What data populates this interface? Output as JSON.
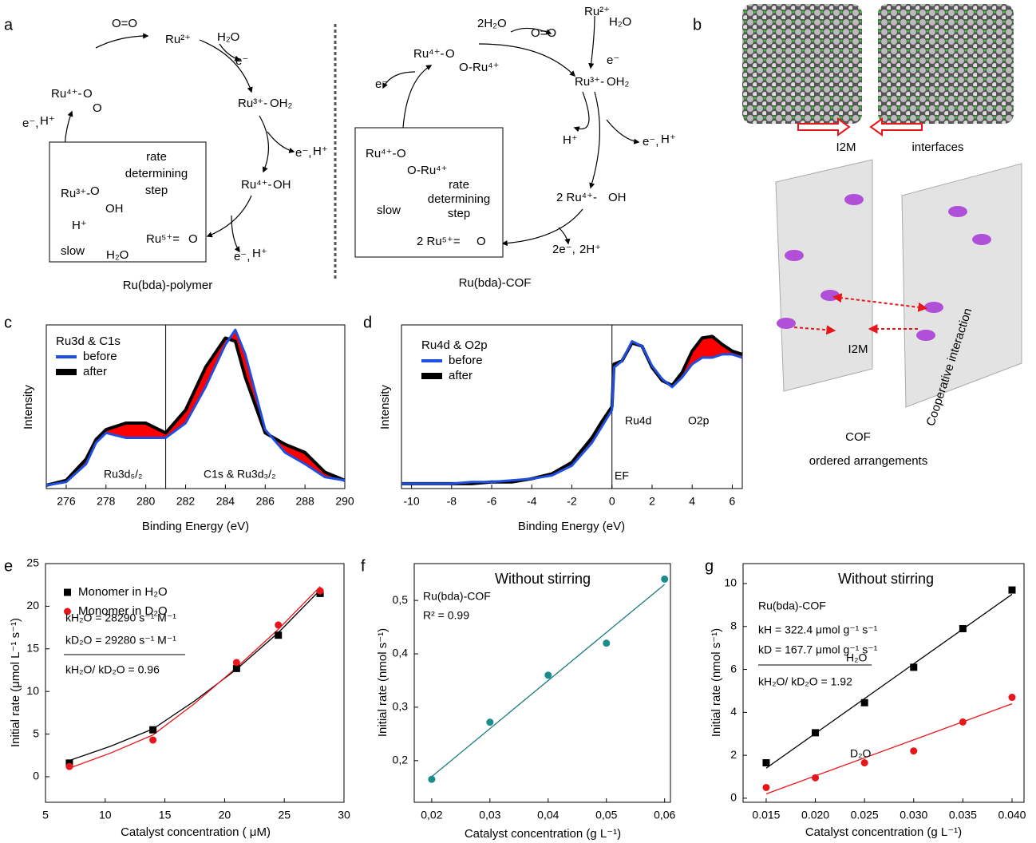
{
  "panel_a": {
    "label": "a",
    "texts": [
      "O=O",
      "Ru²⁺",
      "H₂O",
      "e⁻",
      "Ru³⁺-",
      "OH₂",
      "e⁻,",
      "H⁺",
      "Ru⁴⁺-",
      "OH",
      "Ru⁵⁺=",
      "O",
      "e⁻,",
      "H⁺",
      "Ru⁴⁺-",
      "O",
      "O",
      "e⁻,",
      "H⁺",
      "rate",
      "determining",
      "step",
      "Ru³⁺-",
      "O",
      "OH",
      "H⁺",
      "slow",
      "H₂O",
      "Ru(bda)-polymer",
      "2H₂O",
      "O=O",
      "Ru²⁺",
      "H₂O",
      "e⁻",
      "Ru³⁺-",
      "OH₂",
      "Ru⁴⁺-",
      "O",
      "O",
      "-Ru⁴⁺",
      "e⁻",
      "H⁺",
      "e⁻,",
      "H⁺",
      "2 Ru⁴⁺-",
      "OH",
      "2 Ru⁵⁺=",
      "O",
      "2e⁻,",
      "2H⁺",
      "Ru(bda)-COF",
      "Ru⁴⁺-",
      "O",
      "O",
      "-Ru⁴⁺",
      "rate",
      "determining",
      "step",
      "slow"
    ]
  },
  "panel_b": {
    "label": "b",
    "texts": [
      "I2M",
      "interfaces",
      "I2M",
      "Cooperative interaction",
      "COF",
      "ordered arrangements"
    ]
  },
  "chart_data": [
    {
      "type": "line",
      "panel_label": "c",
      "xlabel": "Binding Energy (eV)",
      "ylabel": "Intensity",
      "legend_title": "Ru3d & C1s",
      "annotations": [
        "Ru3d₅/₂",
        "C1s & Ru3d₃/₂"
      ],
      "marker_line_x": 281,
      "fill_color": "#ff0000",
      "xlim": [
        275,
        290
      ],
      "xticks": [
        276,
        278,
        280,
        282,
        284,
        286,
        288,
        290
      ],
      "ylim": [
        0,
        1
      ],
      "x": [
        275,
        276,
        277,
        277.5,
        278,
        279,
        280,
        281,
        282,
        283,
        284,
        284.5,
        285,
        286,
        287,
        288,
        289,
        290
      ],
      "series": [
        {
          "name": "before",
          "color": "#1f4fe0",
          "values": [
            0.02,
            0.04,
            0.15,
            0.28,
            0.34,
            0.31,
            0.31,
            0.31,
            0.4,
            0.62,
            0.88,
            0.97,
            0.82,
            0.36,
            0.22,
            0.15,
            0.07,
            0.05
          ]
        },
        {
          "name": "after",
          "color": "#000000",
          "values": [
            0.02,
            0.05,
            0.18,
            0.3,
            0.36,
            0.4,
            0.4,
            0.34,
            0.48,
            0.74,
            0.92,
            0.9,
            0.68,
            0.34,
            0.27,
            0.22,
            0.1,
            0.05
          ]
        }
      ]
    },
    {
      "type": "line",
      "panel_label": "d",
      "xlabel": "Binding Energy (eV)",
      "ylabel": "Intensity",
      "legend_title": "Ru4d & O2p",
      "annotations": [
        "Ru4d",
        "O2p",
        "EF"
      ],
      "marker_line_x": 0,
      "fill_color": "#ff0000",
      "xlim": [
        -10.5,
        6.5
      ],
      "xticks": [
        -10,
        -8,
        -6,
        -4,
        -2,
        0,
        2,
        4,
        6
      ],
      "ylim": [
        0,
        1
      ],
      "x": [
        -10.5,
        -9,
        -8,
        -7,
        -6,
        -5,
        -4,
        -3,
        -2,
        -1,
        -0.5,
        0,
        0.1,
        0.5,
        1,
        1.5,
        2,
        2.5,
        3,
        3.5,
        4,
        4.5,
        5,
        5.5,
        6,
        6.5
      ],
      "series": [
        {
          "name": "before",
          "color": "#1f4fe0",
          "values": [
            0.03,
            0.03,
            0.03,
            0.04,
            0.04,
            0.05,
            0.06,
            0.08,
            0.14,
            0.28,
            0.38,
            0.48,
            0.74,
            0.78,
            0.9,
            0.87,
            0.75,
            0.67,
            0.62,
            0.68,
            0.76,
            0.8,
            0.8,
            0.82,
            0.82,
            0.8
          ]
        },
        {
          "name": "after",
          "color": "#000000",
          "values": [
            0.03,
            0.03,
            0.03,
            0.03,
            0.04,
            0.04,
            0.06,
            0.09,
            0.16,
            0.31,
            0.41,
            0.5,
            0.76,
            0.78,
            0.89,
            0.87,
            0.74,
            0.66,
            0.63,
            0.71,
            0.84,
            0.92,
            0.93,
            0.88,
            0.84,
            0.82
          ]
        }
      ]
    },
    {
      "type": "scatter",
      "panel_label": "e",
      "xlabel": "Catalyst concentration ( μM)",
      "ylabel": "Initial rate (μmol L⁻¹ s⁻¹)",
      "annotations": [
        "kH₂O = 28290 s⁻¹ M⁻¹",
        "kD₂O = 29280 s⁻¹ M⁻¹",
        "kH₂O/ kD₂O = 0.96"
      ],
      "xlim": [
        5,
        30
      ],
      "xticks": [
        5,
        10,
        15,
        20,
        25,
        30
      ],
      "ylim": [
        -3,
        25
      ],
      "yticks": [
        0,
        5,
        10,
        15,
        20,
        25
      ],
      "x": [
        7,
        14,
        21,
        24.5,
        28
      ],
      "series": [
        {
          "name": "Monomer in H₂O",
          "color": "#000000",
          "marker": "square",
          "values": [
            1.6,
            5.5,
            12.7,
            16.6,
            21.5
          ]
        },
        {
          "name": "Monomer in D₂O",
          "color": "#e8161b",
          "marker": "circle",
          "values": [
            1.2,
            4.3,
            13.4,
            17.8,
            21.8
          ]
        }
      ],
      "fits": [
        {
          "color": "#000000",
          "x": [
            7,
            10.5,
            14,
            17.5,
            21,
            24.5,
            28
          ],
          "values": [
            1.9,
            3.6,
            5.6,
            8.9,
            12.6,
            16.9,
            21.9
          ]
        },
        {
          "color": "#e8161b",
          "x": [
            7,
            10.5,
            14,
            17.5,
            21,
            24.5,
            28
          ],
          "values": [
            1.0,
            2.8,
            4.9,
            8.6,
            12.8,
            17.3,
            22.3
          ]
        }
      ]
    },
    {
      "type": "scatter",
      "panel_label": "f",
      "title": "Without stirring",
      "xlabel": "Catalyst concentration (g L⁻¹)",
      "ylabel": "Initial rate (nmol s⁻¹)",
      "annotations": [
        "Ru(bda)-COF",
        "R² = 0.99"
      ],
      "xlim": [
        0.017,
        0.061
      ],
      "xticks": [
        {
          "value": 0.02,
          "label": "0,02"
        },
        {
          "value": 0.03,
          "label": "0,03"
        },
        {
          "value": 0.04,
          "label": "0,04"
        },
        {
          "value": 0.05,
          "label": "0,05"
        },
        {
          "value": 0.06,
          "label": "0,06"
        }
      ],
      "ylim": [
        0.122,
        0.569
      ],
      "yticks": [
        {
          "value": 0.2,
          "label": "0,2"
        },
        {
          "value": 0.3,
          "label": "0,3"
        },
        {
          "value": 0.4,
          "label": "0,4"
        },
        {
          "value": 0.5,
          "label": "0,5"
        }
      ],
      "x": [
        0.02,
        0.03,
        0.04,
        0.05,
        0.06
      ],
      "series": [
        {
          "color": "#1a8c8c",
          "marker": "circle",
          "values": [
            0.165,
            0.272,
            0.36,
            0.42,
            0.54
          ]
        }
      ],
      "fits": [
        {
          "color": "#1a7d7d",
          "x": [
            0.02,
            0.06
          ],
          "values": [
            0.17,
            0.53
          ]
        }
      ]
    },
    {
      "type": "scatter",
      "panel_label": "g",
      "title": "Without stirring",
      "xlabel": "Catalyst concentration (g L⁻¹)",
      "ylabel": "Initial rate (nmol s⁻¹)",
      "annotations": [
        "Ru(bda)-COF",
        "kH = 322.4 μmol g⁻¹ s⁻¹",
        "kD = 167.7 μmol g⁻¹ s⁻¹",
        "kH₂O/ kD₂O = 1.92",
        "H₂O",
        "D₂O"
      ],
      "xlim": [
        0.01265,
        0.04122
      ],
      "xticks": [
        0.015,
        {
          "value": 0.02,
          "label": "0.020"
        },
        0.025,
        {
          "value": 0.03,
          "label": "0.030"
        },
        0.035,
        {
          "value": 0.04,
          "label": "0.040"
        }
      ],
      "ylim": [
        -0.19,
        10.93
      ],
      "yticks": [
        0,
        2,
        4,
        6,
        8,
        10
      ],
      "x": [
        0.015,
        0.02,
        0.025,
        0.03,
        0.035,
        0.04
      ],
      "series": [
        {
          "color": "#000000",
          "marker": "square",
          "values": [
            1.65,
            3.05,
            4.45,
            6.1,
            7.9,
            9.7
          ]
        },
        {
          "color": "#e8161b",
          "marker": "circle",
          "values": [
            0.5,
            0.95,
            1.65,
            2.2,
            3.55,
            4.7
          ]
        }
      ],
      "fits": [
        {
          "color": "#000000",
          "x": [
            0.015,
            0.04
          ],
          "values": [
            1.4,
            9.5
          ]
        },
        {
          "color": "#e8161b",
          "x": [
            0.015,
            0.04
          ],
          "values": [
            0.2,
            4.4
          ]
        }
      ]
    }
  ]
}
